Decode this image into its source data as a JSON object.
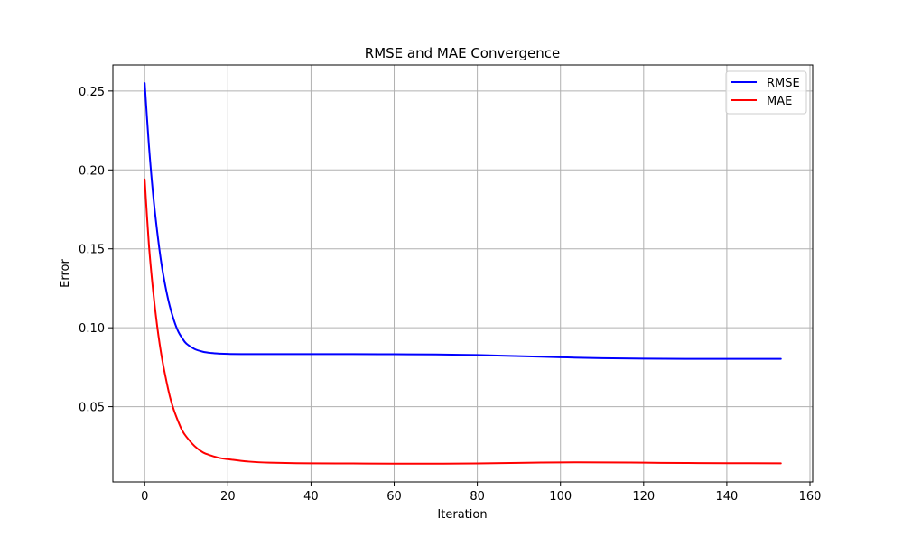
{
  "chart_data": {
    "type": "line",
    "title": "RMSE and MAE Convergence",
    "xlabel": "Iteration",
    "ylabel": "Error",
    "xlim": [
      -7.65,
      160.65
    ],
    "ylim": [
      0.0023,
      0.2665
    ],
    "xticks": [
      0,
      20,
      40,
      60,
      80,
      100,
      120,
      140,
      160
    ],
    "yticks": [
      0.05,
      0.1,
      0.15,
      0.2,
      0.25
    ],
    "ytick_labels": [
      "0.05",
      "0.10",
      "0.15",
      "0.20",
      "0.25"
    ],
    "grid": true,
    "legend": "top-right",
    "series": [
      {
        "name": "RMSE",
        "color": "#0000ff",
        "x": [
          0,
          1,
          2,
          3,
          4,
          5,
          6,
          7,
          8,
          9,
          10,
          12,
          14,
          16,
          18,
          20,
          25,
          30,
          40,
          50,
          60,
          70,
          80,
          90,
          100,
          110,
          120,
          130,
          140,
          153
        ],
        "y": [
          0.255,
          0.216,
          0.185,
          0.161,
          0.141,
          0.126,
          0.114,
          0.105,
          0.098,
          0.0935,
          0.09,
          0.0865,
          0.0848,
          0.084,
          0.0836,
          0.0834,
          0.0833,
          0.0833,
          0.0833,
          0.0833,
          0.0832,
          0.0831,
          0.0827,
          0.082,
          0.0813,
          0.0807,
          0.0804,
          0.0803,
          0.0803,
          0.0803
        ]
      },
      {
        "name": "MAE",
        "color": "#ff0000",
        "x": [
          0,
          1,
          2,
          3,
          4,
          5,
          6,
          7,
          8,
          9,
          10,
          12,
          14,
          16,
          18,
          20,
          25,
          30,
          40,
          50,
          60,
          70,
          80,
          90,
          100,
          110,
          120,
          130,
          140,
          153
        ],
        "y": [
          0.194,
          0.153,
          0.124,
          0.101,
          0.083,
          0.069,
          0.057,
          0.048,
          0.041,
          0.035,
          0.031,
          0.025,
          0.021,
          0.019,
          0.0175,
          0.0167,
          0.0152,
          0.0145,
          0.0141,
          0.014,
          0.0139,
          0.0139,
          0.014,
          0.0144,
          0.0147,
          0.0147,
          0.0145,
          0.0143,
          0.0142,
          0.0141
        ]
      }
    ]
  }
}
